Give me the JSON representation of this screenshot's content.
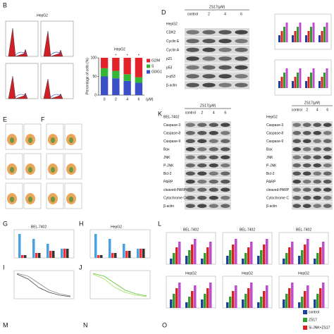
{
  "panel_letters": [
    "B",
    "D",
    "E",
    "F",
    "K",
    "G",
    "H",
    "L",
    "I",
    "J",
    "M",
    "N",
    "O"
  ],
  "panel_b": {
    "title": "HepG2"
  },
  "chart_c": {
    "type": "bar",
    "stacked": true,
    "title": "HepG2",
    "y_label": "Percentage of cells (%)",
    "x_unit": "(μM)",
    "categories": [
      "0",
      "2",
      "4",
      "6"
    ],
    "series": [
      {
        "name": "G0/G1",
        "color": "#3b4fc8",
        "values": [
          50,
          45,
          38,
          33
        ]
      },
      {
        "name": "S",
        "color": "#35b735",
        "values": [
          22,
          20,
          18,
          15
        ]
      },
      {
        "name": "G2/M",
        "color": "#e3222c",
        "values": [
          28,
          35,
          44,
          52
        ]
      }
    ],
    "ylim": [
      0,
      100
    ],
    "yticks": [
      0,
      50,
      100
    ],
    "annotations": [
      "*",
      "*",
      "*"
    ]
  },
  "blot_d": {
    "header": "ZS17(μM)",
    "cell_line": "HepG2",
    "lanes": [
      "control",
      "2",
      "4",
      "6"
    ],
    "rows": [
      "CDK2",
      "Cyclin E",
      "Cyclin A",
      "p21",
      "p53",
      "p-p53",
      "β-actin"
    ]
  },
  "blot_k1": {
    "header": "ZS17(μM)",
    "cell_line": "BEL-7402",
    "lanes": [
      "control",
      "2",
      "4",
      "6"
    ],
    "rows": [
      "Caspase-3",
      "Caspase-8",
      "Caspase-9",
      "Bax",
      "JNK",
      "P-JNK",
      "Bcl-2",
      "PARP",
      "cleaved-PARP",
      "Cytochrome C",
      "β-actin"
    ]
  },
  "blot_k2": {
    "header": "ZS17(μM)",
    "cell_line": "HepG2",
    "lanes": [
      "control",
      "2",
      "4",
      "6"
    ],
    "rows": [
      "Caspase-3",
      "Caspase-8",
      "Caspase-9",
      "Bax",
      "JNK",
      "P-JNK",
      "Bcl-2",
      "PARP",
      "cleaved-PARP",
      "Cytochrome C",
      "β-actin"
    ]
  },
  "panel_g": {
    "title": "BEL-7402"
  },
  "panel_h": {
    "title": "HepG2"
  },
  "panel_l": {
    "titles": [
      "BEL-7402",
      "BEL-7402",
      "BEL-7402",
      "HepG2",
      "HepG2",
      "HepG2"
    ]
  },
  "legend_o": [
    "control",
    "ZS17",
    "Si-JNK+ZS17"
  ]
}
